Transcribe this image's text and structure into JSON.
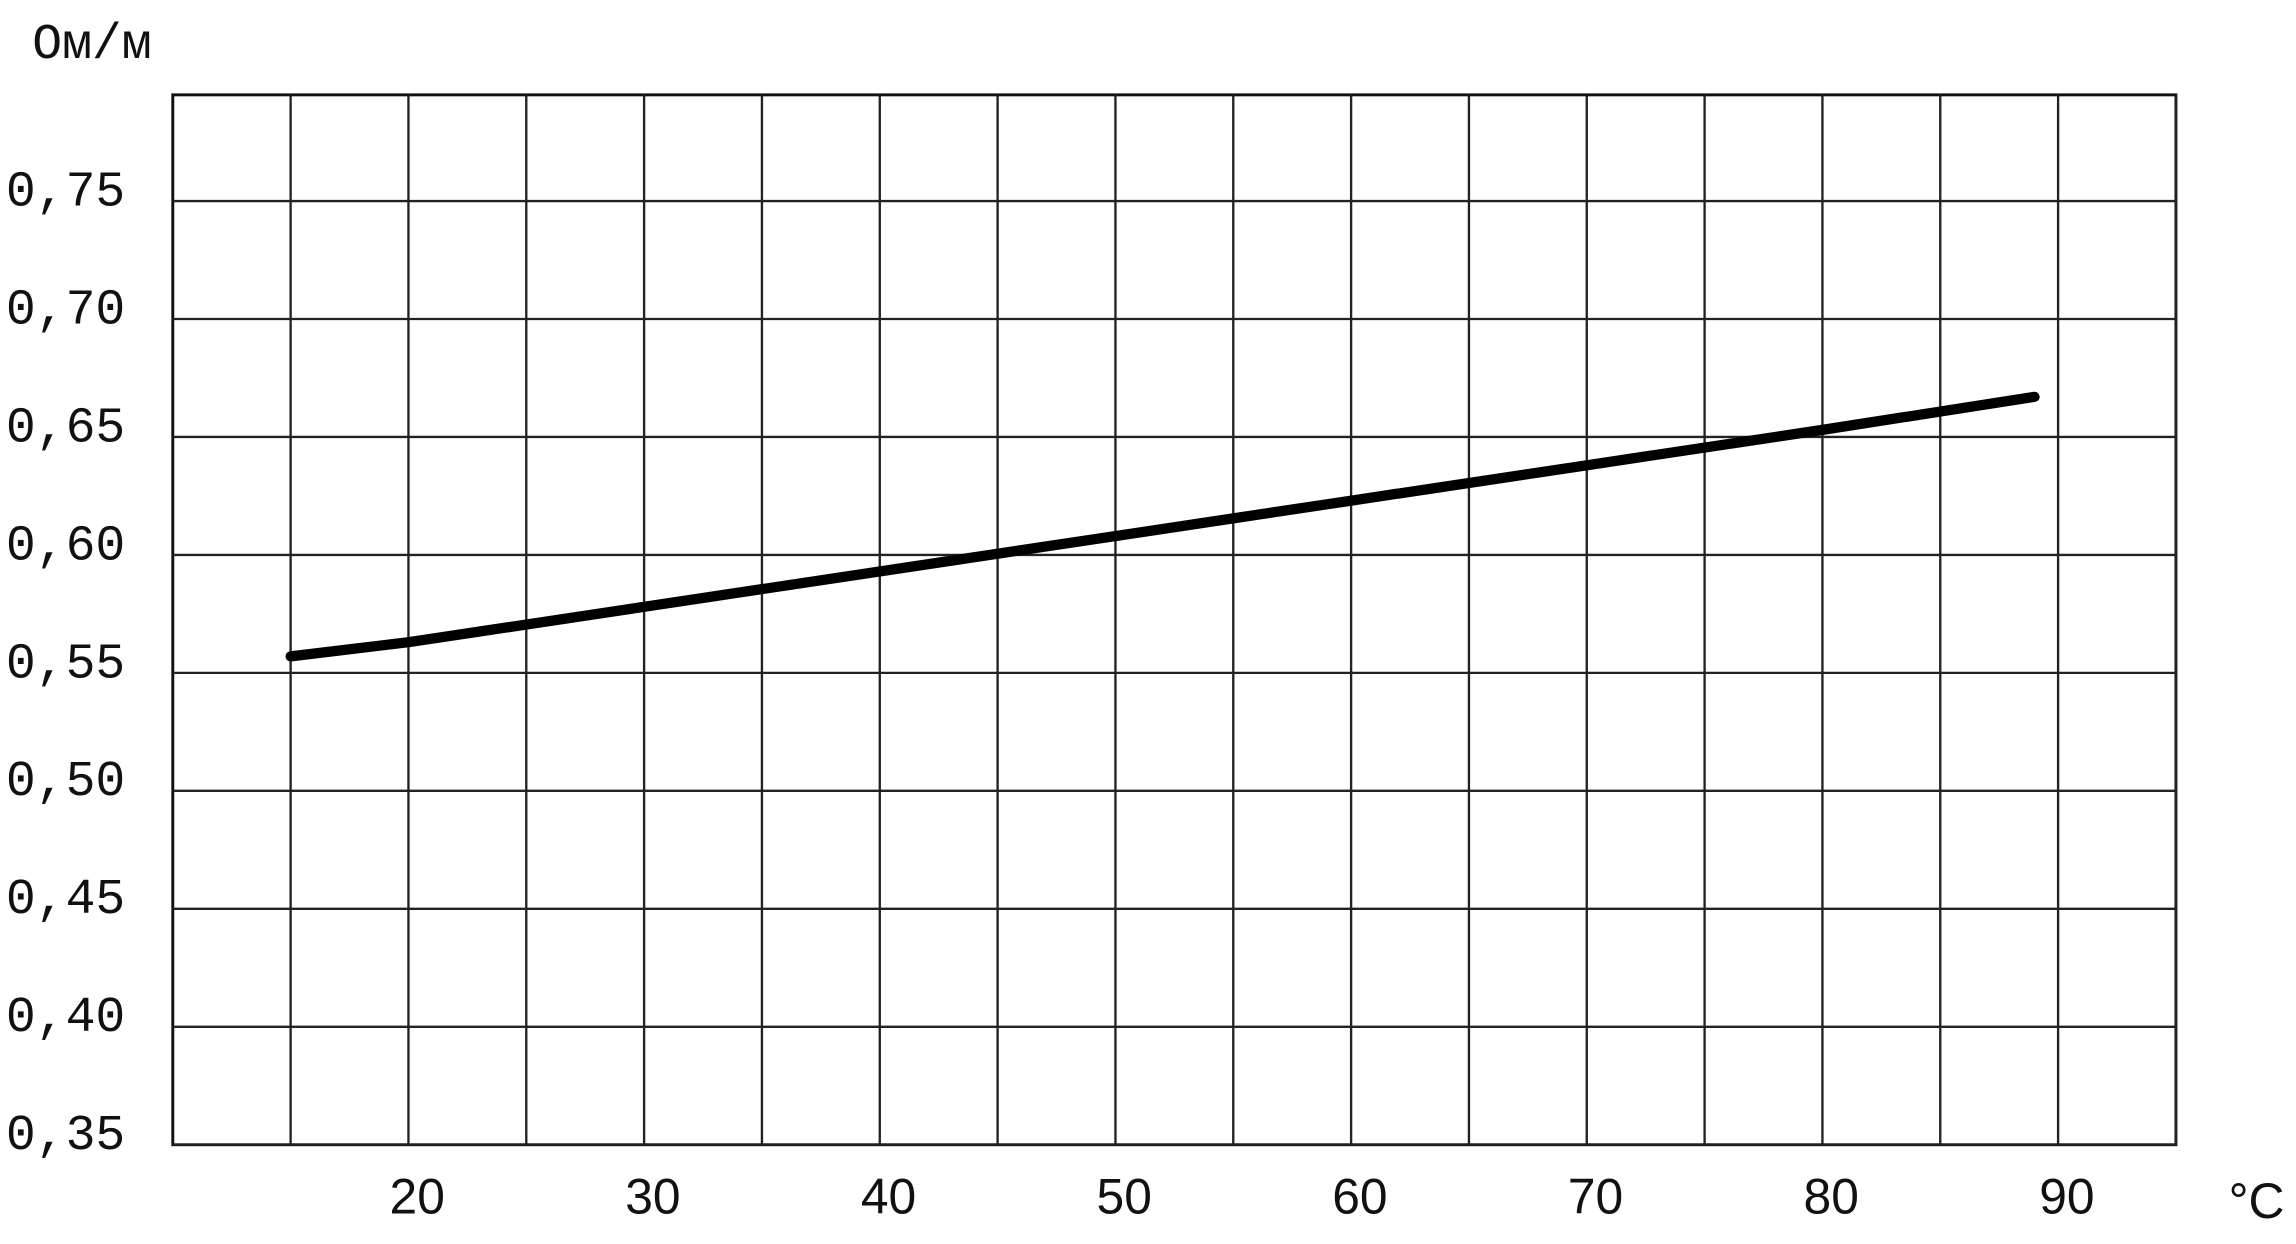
{
  "chart_data": {
    "type": "line",
    "y_label": "Ом/м",
    "x_label": "°C",
    "x": [
      15,
      20,
      30,
      40,
      50,
      60,
      70,
      80,
      89
    ],
    "series": [
      {
        "color": "#000000",
        "values": [
          0.557,
          0.563,
          0.578,
          0.593,
          0.608,
          0.623,
          0.638,
          0.653,
          0.667
        ]
      }
    ],
    "xlim": [
      10,
      95
    ],
    "xticks": [
      20,
      30,
      40,
      50,
      60,
      70,
      80,
      90
    ],
    "xminorticks": [
      15,
      25,
      35,
      45,
      55,
      65,
      75,
      85,
      95
    ],
    "ylim": [
      0.35,
      0.795
    ],
    "yticks": [
      {
        "value": 0.35,
        "label": "0,35"
      },
      {
        "value": 0.4,
        "label": "0,40"
      },
      {
        "value": 0.45,
        "label": "0,45"
      },
      {
        "value": 0.5,
        "label": "0,50"
      },
      {
        "value": 0.55,
        "label": "0,55"
      },
      {
        "value": 0.6,
        "label": "0,60"
      },
      {
        "value": 0.65,
        "label": "0,65"
      },
      {
        "value": 0.7,
        "label": "0,70"
      },
      {
        "value": 0.75,
        "label": "0,75"
      }
    ],
    "grid": true
  }
}
